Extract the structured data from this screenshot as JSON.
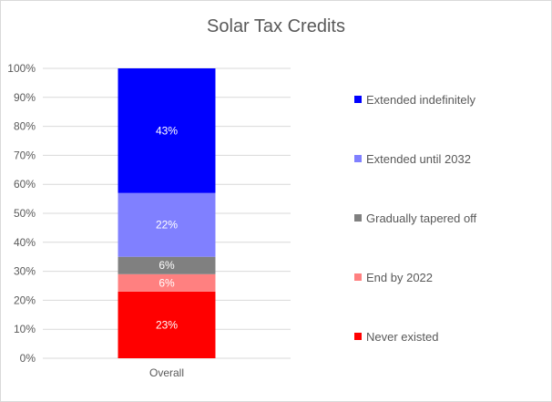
{
  "chart_data": {
    "type": "bar",
    "stacked": true,
    "title": "Solar Tax Credits",
    "categories": [
      "Overall"
    ],
    "ylim": [
      0,
      100
    ],
    "y_ticks": [
      "0%",
      "10%",
      "20%",
      "30%",
      "40%",
      "50%",
      "60%",
      "70%",
      "80%",
      "90%",
      "100%"
    ],
    "grid": true,
    "legend_position": "right",
    "series": [
      {
        "name": "Never existed",
        "values": [
          23
        ],
        "label": "23%",
        "color": "#ff0000"
      },
      {
        "name": "End by 2022",
        "values": [
          6
        ],
        "label": "6%",
        "color": "#ff8080"
      },
      {
        "name": "Gradually tapered off",
        "values": [
          6
        ],
        "label": "6%",
        "color": "#808080"
      },
      {
        "name": "Extended until 2032",
        "values": [
          22
        ],
        "label": "22%",
        "color": "#8080ff"
      },
      {
        "name": "Extended indefinitely",
        "values": [
          43
        ],
        "label": "43%",
        "color": "#0000ff"
      }
    ]
  }
}
